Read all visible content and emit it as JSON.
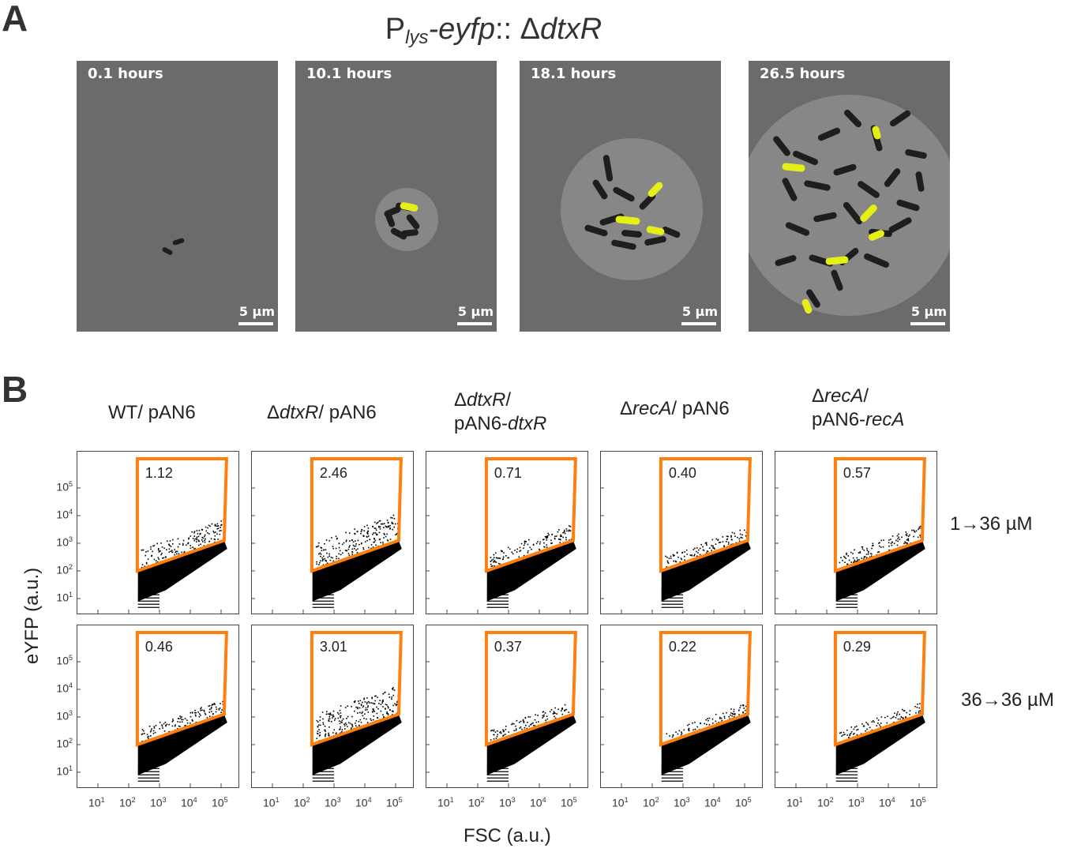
{
  "panel_a": {
    "letter": "A",
    "title": {
      "p": "P",
      "sub": "lys",
      "gene": "-eyfp",
      "sep": ":: Δ",
      "mutant": "dtxR"
    },
    "frames": [
      {
        "time": "0.1 hours",
        "scale_bar": "5 μm"
      },
      {
        "time": "10.1 hours",
        "scale_bar": "5 μm"
      },
      {
        "time": "18.1 hours",
        "scale_bar": "5 μm"
      },
      {
        "time": "26.5 hours",
        "scale_bar": "5 μm"
      }
    ]
  },
  "panel_b": {
    "letter": "B",
    "columns": [
      {
        "line1": "WT/ pAN6",
        "line2": ""
      },
      {
        "line1_pre": "Δ",
        "line1_ital": "dtxR",
        "line1_post": "/ pAN6",
        "line2": ""
      },
      {
        "line1_pre": "Δ",
        "line1_ital": "dtxR",
        "line1_post": "/",
        "line2_pre": "pAN6-",
        "line2_ital": "dtxR"
      },
      {
        "line1_pre": "Δ",
        "line1_ital": "recA",
        "line1_post": "/ pAN6",
        "line2": ""
      },
      {
        "line1_pre": "Δ",
        "line1_ital": "recA",
        "line1_post": "/",
        "line2_pre": "pAN6-",
        "line2_ital": "recA"
      }
    ],
    "rows": [
      "1→36 µM",
      "36→36 µM"
    ],
    "y_axis_label": "eYFP (a.u.)",
    "x_axis_label": "FSC (a.u.)",
    "y_ticks": [
      "10",
      "10",
      "10",
      "10",
      "10"
    ],
    "y_tick_exps": [
      "5",
      "4",
      "3",
      "2",
      "1"
    ],
    "x_ticks": [
      "10",
      "10",
      "10",
      "10",
      "10"
    ],
    "x_tick_exps": [
      "1",
      "2",
      "3",
      "4",
      "5"
    ],
    "gate_color": "#ff7f0e"
  },
  "chart_data": [
    {
      "type": "scatter",
      "row": "1→36 µM",
      "sample": "WT/ pAN6",
      "gate_percent": 1.12
    },
    {
      "type": "scatter",
      "row": "1→36 µM",
      "sample": "ΔdtxR/ pAN6",
      "gate_percent": 2.46
    },
    {
      "type": "scatter",
      "row": "1→36 µM",
      "sample": "ΔdtxR/ pAN6-dtxR",
      "gate_percent": 0.71
    },
    {
      "type": "scatter",
      "row": "1→36 µM",
      "sample": "ΔrecA/ pAN6",
      "gate_percent": 0.4
    },
    {
      "type": "scatter",
      "row": "1→36 µM",
      "sample": "ΔrecA/ pAN6-recA",
      "gate_percent": 0.57
    },
    {
      "type": "scatter",
      "row": "36→36 µM",
      "sample": "WT/ pAN6",
      "gate_percent": 0.46
    },
    {
      "type": "scatter",
      "row": "36→36 µM",
      "sample": "ΔdtxR/ pAN6",
      "gate_percent": 3.01
    },
    {
      "type": "scatter",
      "row": "36→36 µM",
      "sample": "ΔdtxR/ pAN6-dtxR",
      "gate_percent": 0.37
    },
    {
      "type": "scatter",
      "row": "36→36 µM",
      "sample": "ΔrecA/ pAN6",
      "gate_percent": 0.22
    },
    {
      "type": "scatter",
      "row": "36→36 µM",
      "sample": "ΔrecA/ pAN6-recA",
      "gate_percent": 0.29
    }
  ]
}
